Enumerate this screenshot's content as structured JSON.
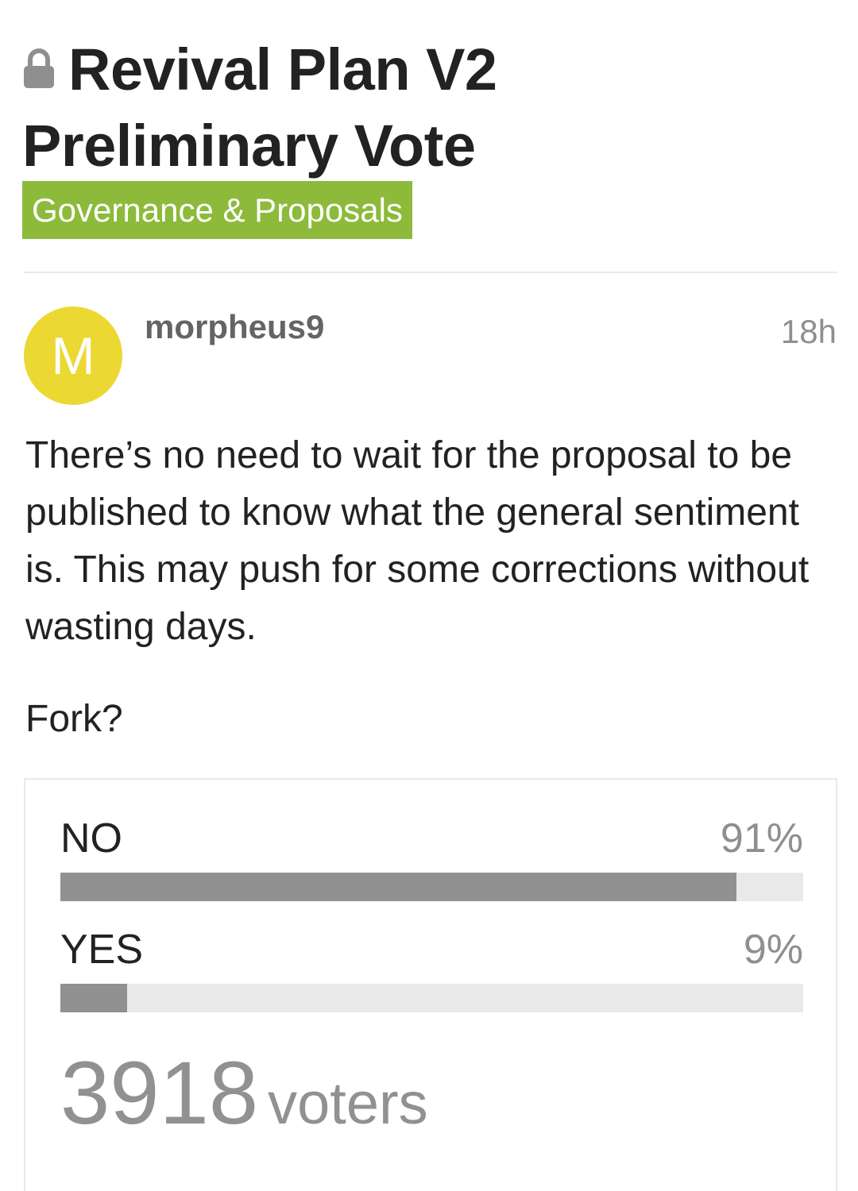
{
  "topic": {
    "title_line1": "Revival Plan V2",
    "title_line2": "Preliminary Vote",
    "locked_icon": "lock-icon",
    "category": "Governance & Proposals",
    "category_color": "#8dba3b"
  },
  "post": {
    "avatar_letter": "M",
    "avatar_color": "#ecd832",
    "username": "morpheus9",
    "time": "18h",
    "body": "There’s no need to wait for the proposal to be published to know what the general sentiment is. This may push for some corrections without wasting days.",
    "question": "Fork?"
  },
  "poll": {
    "options": [
      {
        "label": "NO",
        "percent_label": "91%",
        "percent": 91
      },
      {
        "label": "YES",
        "percent_label": "9%",
        "percent": 9
      }
    ],
    "voters_count": "3918",
    "voters_label": "voters",
    "bar_color": "#919191",
    "track_color": "#e9e9e9"
  }
}
